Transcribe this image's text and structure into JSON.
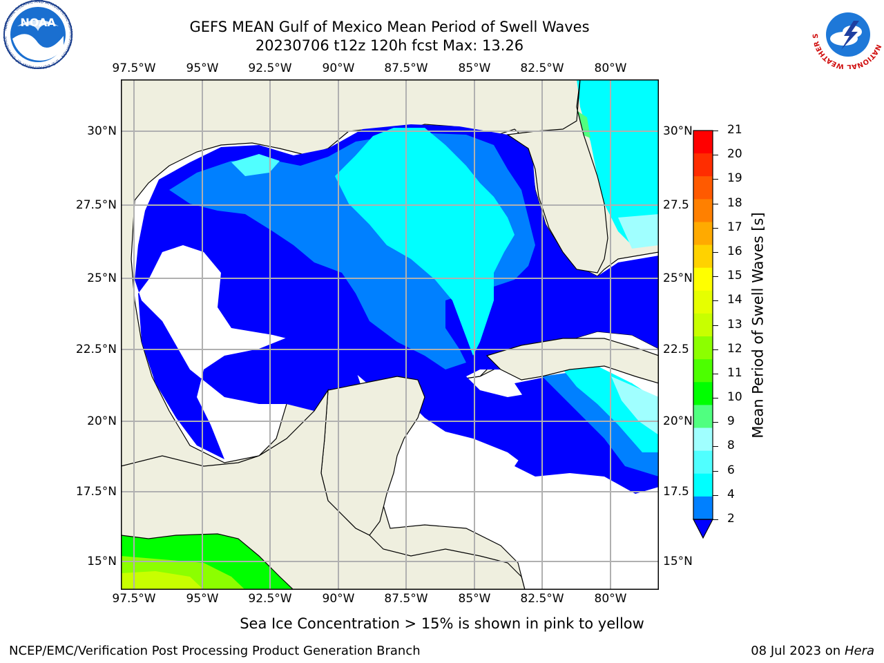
{
  "title": {
    "line1": "GEFS MEAN Gulf of Mexico Mean Period of Swell Waves",
    "line2": "20230706 t12z 120h fcst   Max: 13.26"
  },
  "map": {
    "lon_ticks": [
      "97.5°W",
      "95°W",
      "92.5°W",
      "90°W",
      "87.5°W",
      "85°W",
      "82.5°W",
      "80°W"
    ],
    "lat_ticks_left": [
      "30°N",
      "27.5°N",
      "25°N",
      "22.5°N",
      "20°N",
      "17.5°N",
      "15°N"
    ],
    "lat_ticks_right": [
      "30°N",
      "27.5",
      "25°N",
      "22.5",
      "20°N",
      "17.5",
      "15°N"
    ],
    "land_color": "#efefdf",
    "no_data_color": "#ffffff"
  },
  "colorbar": {
    "title": "Mean Period of Swell Waves [s]",
    "labels": [
      "21",
      "20",
      "19",
      "18",
      "17",
      "16",
      "15",
      "14",
      "13",
      "12",
      "11",
      "10",
      "9",
      "8",
      "6",
      "4",
      "2"
    ],
    "colors_top_to_bottom": [
      "#ff0000",
      "#ff2d00",
      "#ff5a00",
      "#ff8000",
      "#ffaa00",
      "#ffd200",
      "#ffff00",
      "#e6ff00",
      "#c8ff00",
      "#8cff00",
      "#4cff00",
      "#00ff00",
      "#50ff80",
      "#a0ffff",
      "#50ffff",
      "#00ffff",
      "#0080ff"
    ],
    "underflow_color": "#0000ff"
  },
  "ice_note": "Sea Ice Concentration > 15% is shown in pink to yellow",
  "footer": {
    "left": "NCEP/EMC/Verification Post Processing Product Generation Branch",
    "right_prefix": "08 Jul 2023 on ",
    "right_host": "Hera"
  },
  "logos": {
    "noaa_text": "NOAA",
    "noaa_ring_text": "NATIONAL OCEANIC AND ATMOSPHERIC ADMINISTRATION · U.S. DEPARTMENT OF COMMERCE",
    "nws_ring_text": "NATIONAL WEATHER SERVICE"
  }
}
